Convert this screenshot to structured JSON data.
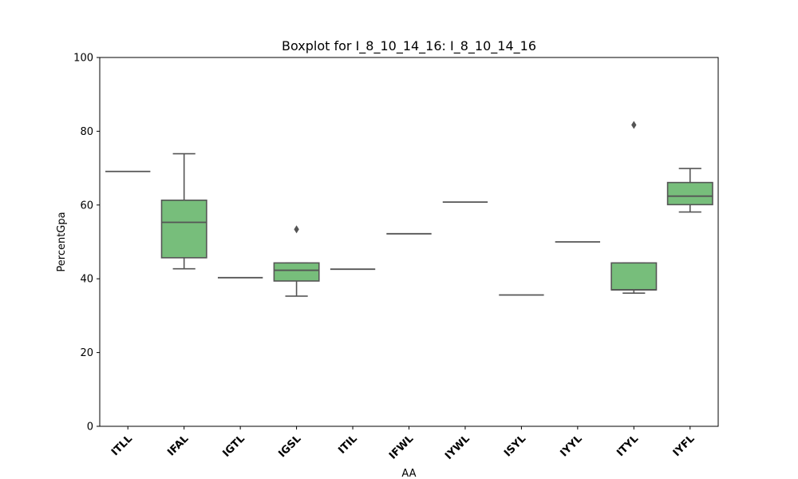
{
  "chart_data": {
    "type": "box",
    "title": "Boxplot for I_8_10_14_16: I_8_10_14_16",
    "xlabel": "AA",
    "ylabel": "PercentGpa",
    "ylim": [
      0,
      100
    ],
    "yticks": [
      0,
      20,
      40,
      60,
      80,
      100
    ],
    "grid": false,
    "box_color": "#77be7b",
    "line_color": "#555555",
    "categories": [
      "ITLL",
      "IFAL",
      "IGTL",
      "IGSL",
      "ITIL",
      "IFWL",
      "IYWL",
      "ISYL",
      "IYYL",
      "ITYL",
      "IYFL"
    ],
    "boxes": [
      {
        "category": "ITLL",
        "whisker_low": 69.1,
        "q1": 69.1,
        "median": 69.1,
        "q3": 69.1,
        "whisker_high": 69.1,
        "outliers": []
      },
      {
        "category": "IFAL",
        "whisker_low": 42.7,
        "q1": 45.7,
        "median": 55.3,
        "q3": 61.3,
        "whisker_high": 73.9,
        "outliers": []
      },
      {
        "category": "IGTL",
        "whisker_low": 40.3,
        "q1": 40.3,
        "median": 40.3,
        "q3": 40.3,
        "whisker_high": 40.3,
        "outliers": []
      },
      {
        "category": "IGSL",
        "whisker_low": 35.3,
        "q1": 39.4,
        "median": 42.3,
        "q3": 44.3,
        "whisker_high": 44.3,
        "outliers": [
          53.4
        ]
      },
      {
        "category": "ITIL",
        "whisker_low": 42.6,
        "q1": 42.6,
        "median": 42.6,
        "q3": 42.6,
        "whisker_high": 42.6,
        "outliers": []
      },
      {
        "category": "IFWL",
        "whisker_low": 52.2,
        "q1": 52.2,
        "median": 52.2,
        "q3": 52.2,
        "whisker_high": 52.2,
        "outliers": []
      },
      {
        "category": "IYWL",
        "whisker_low": 60.8,
        "q1": 60.8,
        "median": 60.8,
        "q3": 60.8,
        "whisker_high": 60.8,
        "outliers": []
      },
      {
        "category": "ISYL",
        "whisker_low": 35.6,
        "q1": 35.6,
        "median": 35.6,
        "q3": 35.6,
        "whisker_high": 35.6,
        "outliers": []
      },
      {
        "category": "IYYL",
        "whisker_low": 50.0,
        "q1": 50.0,
        "median": 50.0,
        "q3": 50.0,
        "whisker_high": 50.0,
        "outliers": []
      },
      {
        "category": "ITYL",
        "whisker_low": 36.1,
        "q1": 37.0,
        "median": 37.0,
        "q3": 44.3,
        "whisker_high": 44.3,
        "outliers": [
          81.7
        ]
      },
      {
        "category": "IYFL",
        "whisker_low": 58.1,
        "q1": 60.1,
        "median": 62.4,
        "q3": 66.1,
        "whisker_high": 69.9,
        "outliers": []
      }
    ]
  }
}
